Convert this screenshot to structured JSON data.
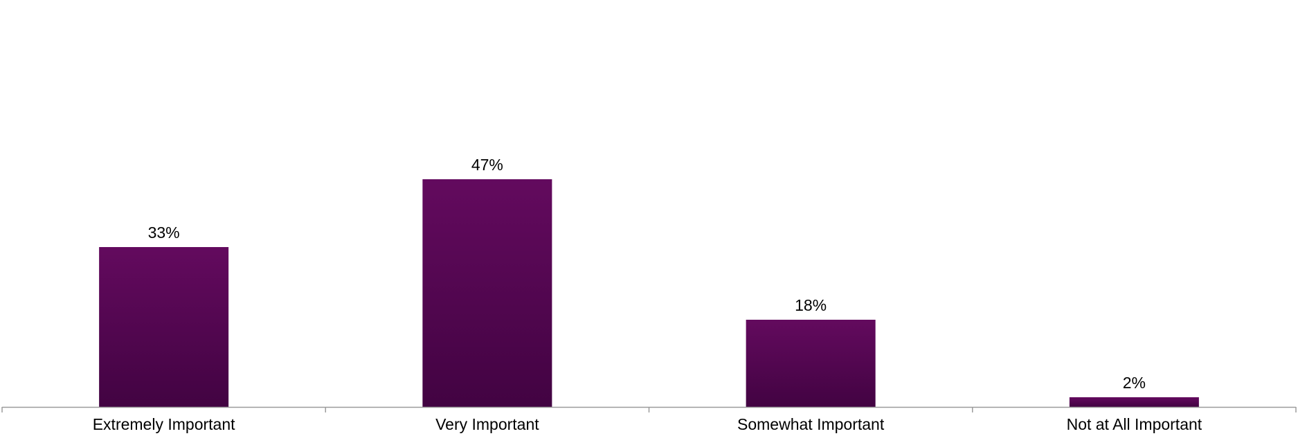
{
  "chart_data": {
    "type": "bar",
    "categories": [
      "Extremely Important",
      "Very Important",
      "Somewhat Important",
      "Not at All Important"
    ],
    "values": [
      33,
      47,
      18,
      2
    ],
    "value_labels": [
      "33%",
      "47%",
      "18%",
      "2%"
    ],
    "title": "",
    "xlabel": "",
    "ylabel": "",
    "ylim": [
      0,
      50
    ],
    "grid": false,
    "legend": "none",
    "colors": {
      "bar_top": "#630A5E",
      "bar_bottom": "#420342",
      "axis": "#9B9B9B"
    }
  }
}
